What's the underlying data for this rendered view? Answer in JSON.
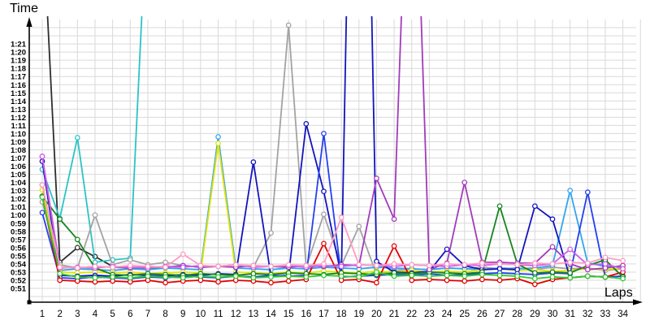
{
  "chart_data": {
    "type": "line",
    "title": "",
    "xlabel": "Laps",
    "ylabel": "Time",
    "x_label_text": "Laps",
    "y_label_text": "Time",
    "x_ticks": [
      "1",
      "2",
      "3",
      "4",
      "5",
      "6",
      "7",
      "8",
      "9",
      "10",
      "11",
      "12",
      "13",
      "14",
      "15",
      "16",
      "17",
      "18",
      "19",
      "20",
      "21",
      "22",
      "23",
      "24",
      "25",
      "26",
      "27",
      "28",
      "29",
      "30",
      "31",
      "32",
      "33",
      "34"
    ],
    "y_ticks": [
      "0:51",
      "0:52",
      "0:53",
      "0:54",
      "0:55",
      "0:56",
      "0:57",
      "0:58",
      "0:59",
      "1:00",
      "1:01",
      "1:02",
      "1:03",
      "1:04",
      "1:05",
      "1:06",
      "1:07",
      "1:08",
      "1:09",
      "1:10",
      "1:11",
      "1:12",
      "1:13",
      "1:14",
      "1:15",
      "1:16",
      "1:17",
      "1:18",
      "1:19",
      "1:20",
      "1:21"
    ],
    "y_tick_seconds_start": 51,
    "y_axis_units": "minutes:seconds lap time",
    "x_axis_units": "lap number",
    "grid": true,
    "legend": "none",
    "marker": "open-circle",
    "note": "values are lap times in seconds; values above 84s run off the top of the plot (clipped); null = no lap recorded",
    "series": [
      {
        "name": "black",
        "color": "#2e2e2e",
        "values": [
          97.5,
          54.2,
          56,
          54.9,
          53.7,
          53.5,
          53.3,
          53.7,
          null,
          null,
          null,
          null,
          null,
          null,
          null,
          null,
          null,
          null,
          null,
          null,
          null,
          null,
          null,
          null,
          null,
          null,
          null,
          null,
          null,
          null,
          null,
          null,
          null,
          null
        ]
      },
      {
        "name": "cyan",
        "color": "#2cc3c6",
        "values": [
          65.6,
          59.6,
          69.5,
          54.2,
          54.5,
          54.7,
          100,
          null,
          null,
          null,
          null,
          null,
          null,
          null,
          null,
          null,
          null,
          null,
          null,
          null,
          null,
          null,
          null,
          null,
          null,
          null,
          null,
          null,
          null,
          null,
          null,
          null,
          null,
          null
        ]
      },
      {
        "name": "gray",
        "color": "#a3a3a3",
        "values": [
          61.6,
          53.9,
          53.5,
          60,
          53.9,
          54.5,
          53.9,
          54.2,
          53.8,
          53.6,
          53.7,
          53.9,
          53.6,
          57.8,
          83.3,
          53.6,
          60.1,
          53.8,
          58.6,
          52.7,
          53.2,
          53.4,
          53.3,
          53.5,
          53.4,
          53.6,
          53.4,
          53.5,
          53.3,
          53.6,
          53.4,
          53.5,
          53.2,
          53.4
        ]
      },
      {
        "name": "skyblue",
        "color": "#31a5ef",
        "values": [
          63.7,
          53.2,
          53.4,
          53.3,
          53.2,
          53.4,
          53.3,
          53.5,
          53.4,
          53.3,
          69.6,
          53.5,
          53.4,
          53.3,
          53.5,
          53.4,
          53.6,
          53.5,
          53.4,
          53.6,
          53.5,
          53.4,
          53.3,
          53.5,
          53.4,
          53.3,
          53.5,
          53.4,
          53.5,
          53.8,
          63,
          54.1,
          53.7,
          53.6
        ]
      },
      {
        "name": "yellow",
        "color": "#e3e300",
        "values": [
          63.1,
          53,
          52.9,
          53,
          52.9,
          53,
          52.8,
          52.9,
          53,
          52.9,
          68.8,
          53,
          52.9,
          52.8,
          53,
          52.9,
          53.1,
          53,
          52.9,
          53.1,
          53,
          53.2,
          53,
          53.1,
          53,
          53.3,
          53.4,
          53.2,
          53.3,
          53.1,
          53.2,
          53.4,
          53.3,
          53.5
        ]
      },
      {
        "name": "navy",
        "color": "#1414bd",
        "values": [
          66.6,
          52.6,
          52.5,
          52.6,
          52.5,
          52.7,
          52.6,
          52.5,
          52.7,
          52.6,
          52.8,
          52.7,
          66.5,
          52.5,
          52.6,
          71.2,
          62.9,
          52.5,
          165,
          54.3,
          53,
          52.9,
          53.1,
          55.8,
          53.8,
          53.3,
          53.4,
          53.3,
          61.1,
          59.5,
          52.3,
          52.5,
          52.4,
          52.5
        ]
      },
      {
        "name": "blue",
        "color": "#2440ef",
        "values": [
          60.3,
          52.3,
          52.2,
          52.4,
          52.3,
          52.2,
          52.4,
          52.3,
          52.5,
          52.4,
          52.3,
          52.5,
          52.4,
          52.6,
          52.5,
          52.6,
          70,
          52.4,
          52.5,
          52.6,
          52.7,
          52.6,
          52.8,
          52.6,
          52.7,
          52.8,
          52.9,
          52.8,
          52.7,
          52.9,
          52.8,
          62.8,
          52.4,
          52.5
        ]
      },
      {
        "name": "red",
        "color": "#e30000",
        "values": [
          62.3,
          52,
          51.9,
          51.8,
          51.9,
          51.8,
          52,
          51.7,
          51.9,
          52,
          51.8,
          52,
          51.9,
          51.7,
          51.9,
          52.1,
          56.5,
          52,
          52.1,
          51.7,
          56.2,
          52,
          52.1,
          52,
          51.9,
          52.1,
          52,
          52.2,
          51.5,
          52.1,
          52.3,
          52.5,
          52.4,
          53
        ]
      },
      {
        "name": "darkgreen",
        "color": "#15831c",
        "values": [
          62.3,
          59.5,
          57,
          53.5,
          52.7,
          52.6,
          52.8,
          52.7,
          52.6,
          52.8,
          52.7,
          52.6,
          52.8,
          52.7,
          52.9,
          52.8,
          52.7,
          52.9,
          52.8,
          52.7,
          52.9,
          52.8,
          53,
          52.9,
          52.8,
          53,
          61.1,
          54,
          52.9,
          53,
          52.9,
          53.8,
          54.5,
          52.4
        ]
      },
      {
        "name": "limegreen",
        "color": "#2ecb2e",
        "values": [
          62.2,
          52.8,
          52.4,
          52.3,
          52.4,
          52.3,
          52.5,
          52.4,
          52.3,
          52.5,
          52.4,
          52.5,
          52.3,
          52.4,
          52.5,
          52.4,
          52.6,
          52.5,
          52.4,
          53,
          52.5,
          52.6,
          52.5,
          52.6,
          52.5,
          52.7,
          52.6,
          52.5,
          52.2,
          52.4,
          52.3,
          52.5,
          52.4,
          52.2
        ]
      },
      {
        "name": "purple",
        "color": "#a23bbb",
        "values": [
          67.2,
          53.6,
          53.5,
          53.7,
          53.6,
          53.5,
          53.7,
          53.6,
          53.8,
          53.6,
          53.7,
          53.6,
          53.8,
          53.7,
          53.6,
          53.8,
          53.7,
          53.9,
          53.8,
          64.5,
          59.5,
          120,
          53.3,
          54.1,
          64,
          54.2,
          54.2,
          54.1,
          54.1,
          56.1,
          54,
          53.3,
          53.5,
          53.8
        ]
      },
      {
        "name": "magenta",
        "color": "#d25ce8",
        "values": [
          67.2,
          53.5,
          53.6,
          53.5,
          53.7,
          53.6,
          53.5,
          53.7,
          53.6,
          53.8,
          53.7,
          53.9,
          53.6,
          53.7,
          53.8,
          53.6,
          53.8,
          53.7,
          53.9,
          53.8,
          53.7,
          53.9,
          53.8,
          53.7,
          53.9,
          53.8,
          54,
          53.9,
          53.8,
          54,
          55.8,
          53.9,
          54,
          53.4
        ]
      },
      {
        "name": "pink",
        "color": "#ff9cc2",
        "values": [
          63.7,
          53.6,
          53.5,
          53.7,
          53.6,
          53.8,
          53.7,
          53.6,
          55.2,
          53.8,
          53.7,
          53.9,
          53.8,
          53.7,
          53.9,
          53.8,
          54,
          59.7,
          53.9,
          53.8,
          54,
          53.9,
          53.8,
          54,
          53.9,
          54.1,
          54,
          53.9,
          54.1,
          54,
          54.2,
          54.1,
          54.8,
          54.4
        ]
      }
    ]
  }
}
